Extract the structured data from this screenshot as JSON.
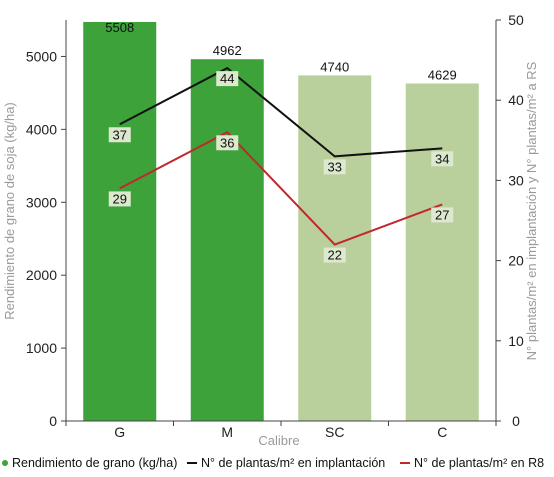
{
  "chart_data": {
    "type": "bar",
    "categories": [
      "G",
      "M",
      "SC",
      "C"
    ],
    "xlabel": "Calibre",
    "ylabel": "Rendimiento de grano de soja (kg/ha)",
    "y2label": "N° plantas/m² en implantación y N° plantas/m² a RS",
    "ylim": [
      0,
      5500
    ],
    "y2lim": [
      0,
      50
    ],
    "yticks": [
      0,
      1000,
      2000,
      3000,
      4000,
      5000
    ],
    "y2ticks": [
      0,
      10,
      20,
      30,
      40,
      50
    ],
    "grid": false,
    "legend_position": "bottom",
    "bars": {
      "name": "Rendimiento de grano (kg/ha)",
      "values": [
        5508,
        4962,
        4740,
        4629
      ],
      "labels": [
        "5508",
        "4962",
        "4740",
        "4629"
      ],
      "colors": [
        "#3da23a",
        "#3da23a",
        "#b9cf9c",
        "#b9cf9c"
      ]
    },
    "series": [
      {
        "name": "N° de plantas/m² en implantación",
        "axis": "right",
        "values": [
          37,
          44,
          33,
          34
        ],
        "labels": [
          "37",
          "44",
          "33",
          "34"
        ],
        "color": "#111111"
      },
      {
        "name": "N° de plantas/m² en R8",
        "axis": "right",
        "values": [
          29,
          36,
          22,
          27
        ],
        "labels": [
          "29",
          "36",
          "22",
          "27"
        ],
        "color": "#c0282d"
      }
    ]
  },
  "legend": [
    {
      "label": "Rendimiento de grano (kg/ha)",
      "color": "#3da23a"
    },
    {
      "label": "N° de plantas/m² en implantación",
      "color": "#111111"
    },
    {
      "label": "N° de plantas/m² en R8",
      "color": "#c0282d"
    }
  ]
}
